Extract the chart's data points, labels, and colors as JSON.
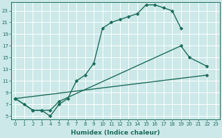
{
  "xlabel": "Humidex (Indice chaleur)",
  "bg_color": "#cce8e8",
  "grid_color": "#ffffff",
  "line_color": "#1a6b5a",
  "markersize": 2.5,
  "linewidth": 1.0,
  "xlim": [
    -0.5,
    23.5
  ],
  "ylim": [
    4.5,
    24.5
  ],
  "xticks": [
    0,
    1,
    2,
    3,
    4,
    5,
    6,
    7,
    8,
    9,
    10,
    11,
    12,
    13,
    14,
    15,
    16,
    17,
    18,
    19,
    20,
    21,
    22,
    23
  ],
  "yticks": [
    5,
    7,
    9,
    11,
    13,
    15,
    17,
    19,
    21,
    23
  ],
  "lines": [
    {
      "x": [
        0,
        1,
        2,
        3,
        4,
        5,
        6,
        7,
        8,
        9,
        10,
        11,
        12,
        13,
        14,
        15,
        16,
        17,
        18,
        19
      ],
      "y": [
        8,
        7,
        6,
        6,
        5,
        7,
        8,
        11,
        12,
        14,
        20,
        21,
        21.5,
        22,
        22.5,
        24,
        24,
        23.5,
        23,
        20
      ]
    },
    {
      "x": [
        0,
        2,
        3,
        4,
        5,
        19,
        20,
        22
      ],
      "y": [
        8,
        6,
        6,
        6,
        7.5,
        17,
        15,
        13.5
      ]
    },
    {
      "x": [
        0,
        22
      ],
      "y": [
        8,
        12
      ]
    }
  ],
  "tick_fontsize": 5,
  "xlabel_fontsize": 6.5
}
